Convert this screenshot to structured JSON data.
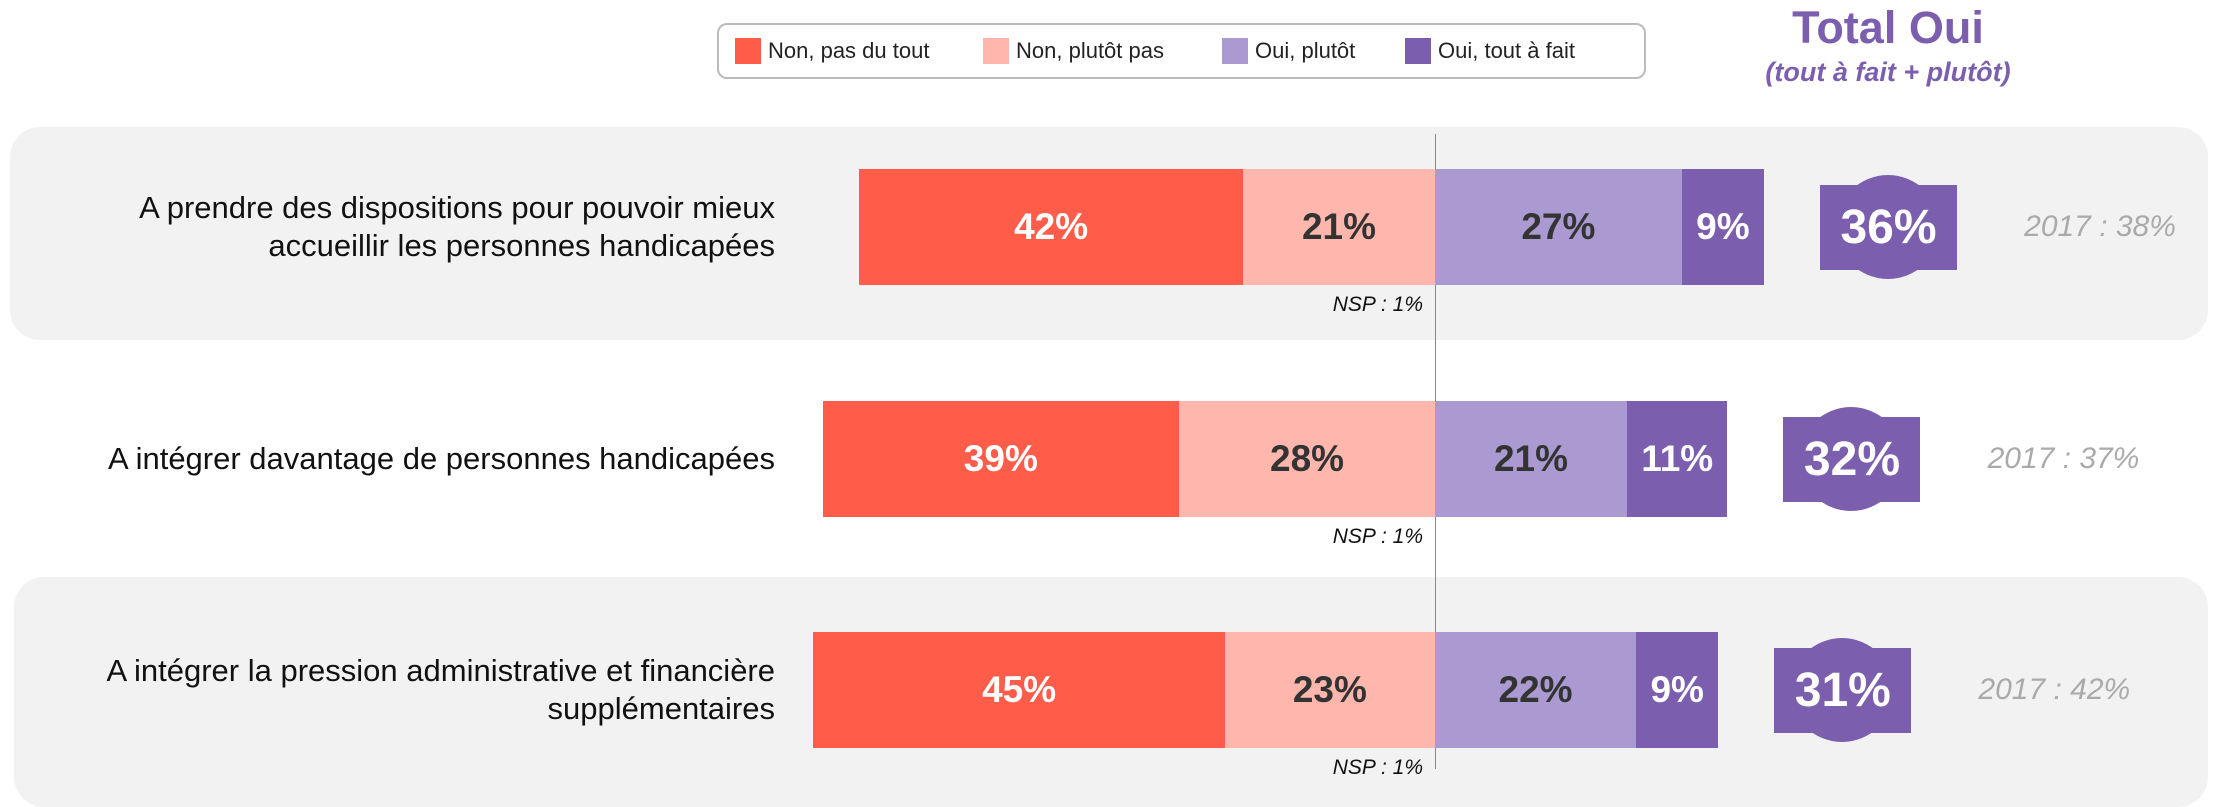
{
  "chart_data": {
    "type": "diverging_bar",
    "title": "Total Oui",
    "subtitle": "(tout à fait + plutôt)",
    "categories": [
      "A prendre des dispositions pour pouvoir mieux\naccueillir les personnes handicapées",
      "A intégrer davantage de personnes handicapées",
      "A intégrer la pression administrative et financière\nsupplémentaires"
    ],
    "series": [
      {
        "name": "Non, pas du tout",
        "color": "#ff5c49",
        "side": "negative",
        "values": [
          42,
          39,
          45
        ],
        "value_labels": [
          "42%",
          "39%",
          "45%"
        ]
      },
      {
        "name": "Non, plutôt pas",
        "color": "#ffb7ad",
        "side": "negative",
        "values": [
          21,
          28,
          23
        ],
        "value_labels": [
          "21%",
          "28%",
          "23%"
        ]
      },
      {
        "name": "Oui, plutôt",
        "color": "#ab99d1",
        "side": "positive",
        "values": [
          27,
          21,
          22
        ],
        "value_labels": [
          "27%",
          "21%",
          "22%"
        ]
      },
      {
        "name": "Oui, tout à fait",
        "color": "#7b5fae",
        "side": "positive",
        "values": [
          9,
          11,
          9
        ],
        "value_labels": [
          "9%",
          "11%",
          "9%"
        ]
      }
    ],
    "totals": {
      "values": [
        36,
        32,
        31
      ],
      "value_labels": [
        "36%",
        "32%",
        "31%"
      ],
      "color": "#7b5fae"
    },
    "annotations": [
      "NSP : 1%",
      "NSP : 1%",
      "NSP : 1%"
    ],
    "previous": [
      "2017 : 38%",
      "2017 : 37%",
      "2017 : 42%"
    ]
  }
}
